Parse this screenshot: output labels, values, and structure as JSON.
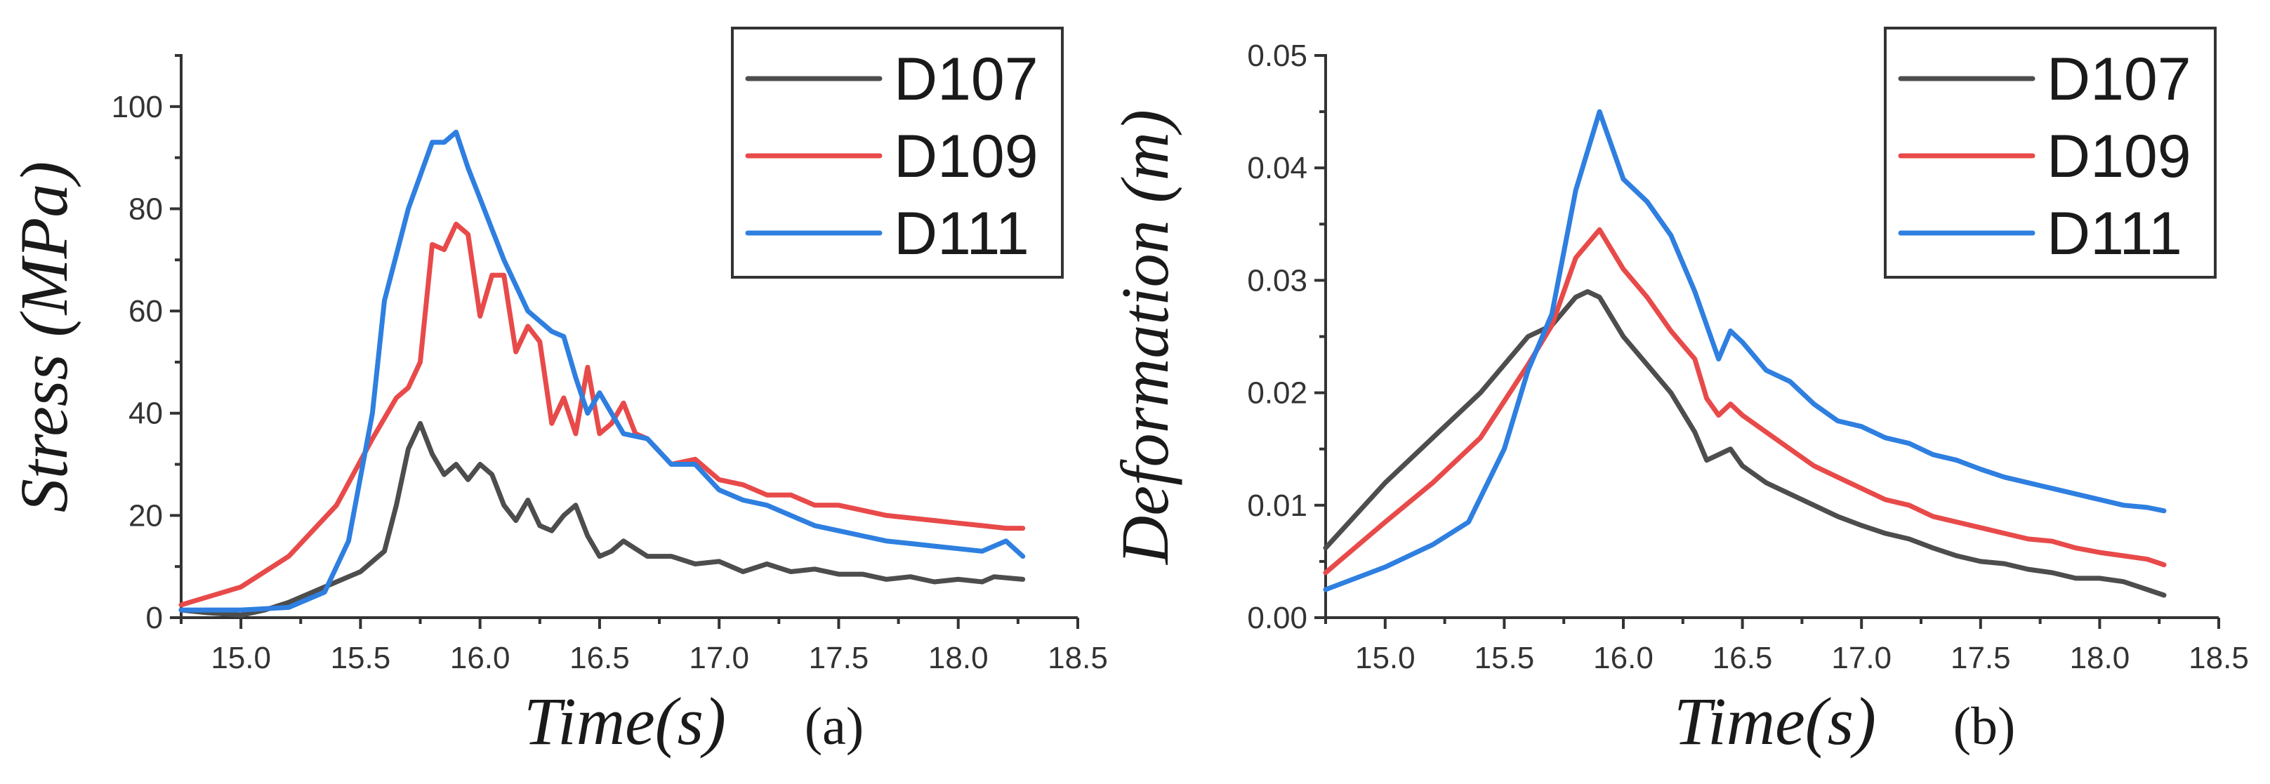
{
  "chart_data": [
    {
      "type": "line",
      "panel_label": "(a)",
      "xlabel": "Time(s)",
      "ylabel": "Stress (MPa)",
      "xlim": [
        14.75,
        18.5
      ],
      "ylim": [
        0,
        110
      ],
      "xticks": [
        15.0,
        15.5,
        16.0,
        16.5,
        17.0,
        17.5,
        18.0,
        18.5
      ],
      "xtick_labels": [
        "15.0",
        "15.5",
        "16.0",
        "16.5",
        "17.0",
        "17.5",
        "18.0",
        "18.5"
      ],
      "yticks": [
        0,
        20,
        40,
        60,
        80,
        100
      ],
      "ytick_labels": [
        "0",
        "20",
        "40",
        "60",
        "80",
        "100"
      ],
      "legend": "top-right",
      "series": [
        {
          "name": "D107",
          "color": "#4d4d4d",
          "x": [
            14.75,
            14.85,
            15.0,
            15.1,
            15.2,
            15.3,
            15.4,
            15.5,
            15.6,
            15.65,
            15.7,
            15.75,
            15.8,
            15.85,
            15.9,
            15.95,
            16.0,
            16.05,
            16.1,
            16.15,
            16.2,
            16.25,
            16.3,
            16.35,
            16.4,
            16.45,
            16.5,
            16.55,
            16.6,
            16.7,
            16.8,
            16.9,
            17.0,
            17.1,
            17.2,
            17.3,
            17.4,
            17.5,
            17.6,
            17.7,
            17.8,
            17.9,
            18.0,
            18.1,
            18.15,
            18.27
          ],
          "values": [
            1.5,
            1,
            0.5,
            1.5,
            3,
            5,
            7,
            9,
            13,
            22,
            33,
            38,
            32,
            28,
            30,
            27,
            30,
            28,
            22,
            19,
            23,
            18,
            17,
            20,
            22,
            16,
            12,
            13,
            15,
            12,
            12,
            10.5,
            11,
            9,
            10.5,
            9,
            9.5,
            8.5,
            8.5,
            7.5,
            8,
            7,
            7.5,
            7,
            8,
            7.5
          ]
        },
        {
          "name": "D109",
          "color": "#e84a4a",
          "x": [
            14.75,
            15.0,
            15.2,
            15.4,
            15.55,
            15.65,
            15.7,
            15.75,
            15.8,
            15.85,
            15.9,
            15.95,
            16.0,
            16.05,
            16.1,
            16.15,
            16.2,
            16.25,
            16.3,
            16.35,
            16.4,
            16.45,
            16.5,
            16.55,
            16.6,
            16.65,
            16.7,
            16.8,
            16.9,
            17.0,
            17.1,
            17.2,
            17.3,
            17.4,
            17.5,
            17.6,
            17.7,
            17.8,
            17.9,
            18.0,
            18.1,
            18.2,
            18.27
          ],
          "values": [
            2.5,
            6,
            12,
            22,
            35,
            43,
            45,
            50,
            73,
            72,
            77,
            75,
            59,
            67,
            67,
            52,
            57,
            54,
            38,
            43,
            36,
            49,
            36,
            38,
            42,
            36,
            35,
            30,
            31,
            27,
            26,
            24,
            24,
            22,
            22,
            21,
            20,
            19.5,
            19,
            18.5,
            18,
            17.5,
            17.5
          ]
        },
        {
          "name": "D111",
          "color": "#2e7fe0",
          "x": [
            14.75,
            15.0,
            15.2,
            15.35,
            15.45,
            15.55,
            15.6,
            15.7,
            15.8,
            15.85,
            15.9,
            15.95,
            16.0,
            16.05,
            16.1,
            16.2,
            16.3,
            16.35,
            16.4,
            16.45,
            16.5,
            16.6,
            16.7,
            16.8,
            16.9,
            17.0,
            17.1,
            17.2,
            17.3,
            17.4,
            17.5,
            17.6,
            17.7,
            17.8,
            17.9,
            18.0,
            18.1,
            18.2,
            18.27
          ],
          "values": [
            1.5,
            1.5,
            2,
            5,
            15,
            40,
            62,
            80,
            93,
            93,
            95,
            88,
            82,
            76,
            70,
            60,
            56,
            55,
            47,
            40,
            44,
            36,
            35,
            30,
            30,
            25,
            23,
            22,
            20,
            18,
            17,
            16,
            15,
            14.5,
            14,
            13.5,
            13,
            15,
            12
          ]
        }
      ]
    },
    {
      "type": "line",
      "panel_label": "(b)",
      "xlabel": "Time(s)",
      "ylabel": "Deformation (m)",
      "xlim": [
        14.75,
        18.5
      ],
      "ylim": [
        0,
        0.05
      ],
      "xticks": [
        15.0,
        15.5,
        16.0,
        16.5,
        17.0,
        17.5,
        18.0,
        18.5
      ],
      "xtick_labels": [
        "15.0",
        "15.5",
        "16.0",
        "16.5",
        "17.0",
        "17.5",
        "18.0",
        "18.5"
      ],
      "yticks": [
        0,
        0.01,
        0.02,
        0.03,
        0.04,
        0.05
      ],
      "ytick_labels": [
        "0.00",
        "0.01",
        "0.02",
        "0.03",
        "0.04",
        "0.05"
      ],
      "legend": "top-right",
      "series": [
        {
          "name": "D107",
          "color": "#4d4d4d",
          "x": [
            14.75,
            15.0,
            15.2,
            15.4,
            15.6,
            15.7,
            15.8,
            15.85,
            15.9,
            16.0,
            16.1,
            16.2,
            16.3,
            16.35,
            16.4,
            16.45,
            16.5,
            16.6,
            16.7,
            16.8,
            16.9,
            17.0,
            17.1,
            17.2,
            17.3,
            17.4,
            17.5,
            17.6,
            17.7,
            17.8,
            17.9,
            18.0,
            18.1,
            18.2,
            18.27
          ],
          "values": [
            0.0062,
            0.012,
            0.016,
            0.02,
            0.025,
            0.026,
            0.0285,
            0.029,
            0.0285,
            0.025,
            0.0225,
            0.02,
            0.0165,
            0.014,
            0.0145,
            0.015,
            0.0135,
            0.012,
            0.011,
            0.01,
            0.009,
            0.0082,
            0.0075,
            0.007,
            0.0062,
            0.0055,
            0.005,
            0.0048,
            0.0043,
            0.004,
            0.0035,
            0.0035,
            0.0032,
            0.0025,
            0.002
          ]
        },
        {
          "name": "D109",
          "color": "#e84a4a",
          "x": [
            14.75,
            15.0,
            15.2,
            15.4,
            15.6,
            15.7,
            15.8,
            15.9,
            16.0,
            16.1,
            16.2,
            16.3,
            16.35,
            16.4,
            16.45,
            16.5,
            16.6,
            16.7,
            16.8,
            16.9,
            17.0,
            17.1,
            17.2,
            17.3,
            17.4,
            17.5,
            17.6,
            17.7,
            17.8,
            17.9,
            18.0,
            18.1,
            18.2,
            18.27
          ],
          "values": [
            0.004,
            0.0085,
            0.012,
            0.016,
            0.0225,
            0.026,
            0.032,
            0.0345,
            0.031,
            0.0285,
            0.0255,
            0.023,
            0.0195,
            0.018,
            0.019,
            0.018,
            0.0165,
            0.015,
            0.0135,
            0.0125,
            0.0115,
            0.0105,
            0.01,
            0.009,
            0.0085,
            0.008,
            0.0075,
            0.007,
            0.0068,
            0.0062,
            0.0058,
            0.0055,
            0.0052,
            0.0047
          ]
        },
        {
          "name": "D111",
          "color": "#2e7fe0",
          "x": [
            14.75,
            15.0,
            15.2,
            15.35,
            15.5,
            15.6,
            15.7,
            15.8,
            15.9,
            16.0,
            16.1,
            16.2,
            16.3,
            16.4,
            16.45,
            16.5,
            16.6,
            16.7,
            16.8,
            16.9,
            17.0,
            17.1,
            17.2,
            17.3,
            17.4,
            17.5,
            17.6,
            17.7,
            17.8,
            17.9,
            18.0,
            18.1,
            18.2,
            18.27
          ],
          "values": [
            0.0025,
            0.0045,
            0.0065,
            0.0085,
            0.015,
            0.022,
            0.027,
            0.038,
            0.045,
            0.039,
            0.037,
            0.034,
            0.029,
            0.023,
            0.0255,
            0.0245,
            0.022,
            0.021,
            0.019,
            0.0175,
            0.017,
            0.016,
            0.0155,
            0.0145,
            0.014,
            0.0132,
            0.0125,
            0.012,
            0.0115,
            0.011,
            0.0105,
            0.01,
            0.0098,
            0.0095
          ]
        }
      ]
    }
  ]
}
